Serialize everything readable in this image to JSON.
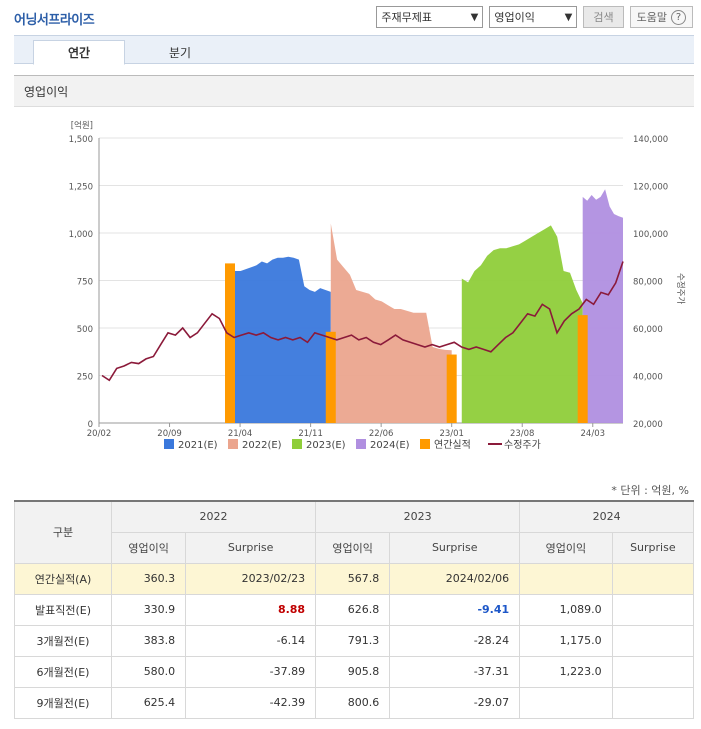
{
  "header": {
    "title": "어닝서프라이즈",
    "select1": "주재무제표",
    "select2": "영업이익",
    "search_label": "검색",
    "help_label": "도움말"
  },
  "tabs": [
    {
      "label": "연간"
    },
    {
      "label": "분기"
    }
  ],
  "section_title": "영업이익",
  "chart_data": {
    "type": "area",
    "left_axis_label": "[억원]",
    "right_axis_label": "수정주가",
    "left_ticks": [
      "0",
      "250",
      "500",
      "750",
      "1,000",
      "1,250",
      "1,500"
    ],
    "right_ticks": [
      "20,000",
      "40,000",
      "60,000",
      "80,000",
      "100,000",
      "120,000",
      "140,000"
    ],
    "x_ticks": [
      "20/02",
      "20/09",
      "21/04",
      "21/11",
      "22/06",
      "23/01",
      "23/08",
      "24/03"
    ],
    "ylim": [
      0,
      1500
    ],
    "y2lim": [
      20000,
      140000
    ],
    "colors": {
      "e2021": "#3a78dc",
      "e2022": "#eba58e",
      "e2023": "#8fce3a",
      "e2024": "#b08fe0",
      "actual": "#ff9a00",
      "price": "#8b1a3a"
    },
    "series": [
      {
        "name": "2021(E)",
        "x_start": "21/03",
        "x_end": "22/01",
        "values": [
          830,
          800,
          800,
          810,
          820,
          830,
          850,
          840,
          860,
          870,
          870,
          875,
          870,
          860,
          720,
          700,
          690,
          710,
          700,
          690
        ]
      },
      {
        "name": "2022(E)",
        "x_start": "22/01",
        "x_end": "23/01",
        "values": [
          1050,
          860,
          820,
          780,
          700,
          690,
          680,
          650,
          640,
          620,
          600,
          600,
          590,
          580,
          580,
          580,
          400,
          390,
          385,
          383
        ]
      },
      {
        "name": "2023(E)",
        "x_start": "23/02",
        "x_end": "24/02",
        "values": [
          760,
          740,
          800,
          830,
          880,
          910,
          920,
          920,
          930,
          940,
          960,
          980,
          1000,
          1020,
          1040,
          980,
          800,
          791,
          700,
          630
        ]
      },
      {
        "name": "2024(E)",
        "x_start": "24/02",
        "x_end": "24/06",
        "values": [
          1190,
          1170,
          1200,
          1175,
          1190,
          1230,
          1140,
          1100,
          1089,
          1080
        ]
      }
    ],
    "actual_bars": [
      {
        "name": "연간실적",
        "x": "21/03",
        "value": 840
      },
      {
        "name": "연간실적",
        "x": "22/01",
        "value": 480
      },
      {
        "name": "연간실적",
        "x": "23/01",
        "value": 360.3
      },
      {
        "name": "연간실적",
        "x": "24/02",
        "value": 567.8
      }
    ],
    "price": {
      "name": "수정주가",
      "values": [
        40000,
        38000,
        43000,
        44000,
        45500,
        45000,
        47000,
        48000,
        53000,
        58000,
        57000,
        60000,
        56000,
        58000,
        62000,
        66000,
        64000,
        58000,
        56000,
        57000,
        58000,
        57000,
        58000,
        56000,
        55000,
        56000,
        55000,
        56000,
        54000,
        58000,
        57000,
        56000,
        55000,
        56000,
        57000,
        55000,
        56000,
        54000,
        53000,
        55000,
        57000,
        55000,
        54000,
        53000,
        52000,
        53000,
        52000,
        53000,
        54000,
        52000,
        51000,
        52000,
        51000,
        50000,
        53000,
        56000,
        58000,
        62000,
        66000,
        65000,
        70000,
        68000,
        58000,
        63000,
        66000,
        68000,
        72000,
        70000,
        75000,
        74000,
        79000,
        88000
      ]
    },
    "legend": [
      "2021(E)",
      "2022(E)",
      "2023(E)",
      "2024(E)",
      "연간실적",
      "수정주가"
    ],
    "legend_position": "bottom"
  },
  "unit_note": "* 단위 : 억원, %",
  "table": {
    "corner": "구분",
    "years": [
      "2022",
      "2023",
      "2024"
    ],
    "sub_headers": [
      "영업이익",
      "Surprise"
    ],
    "rows": [
      {
        "label": "연간실적(A)",
        "cells": [
          "360.3",
          "2023/02/23",
          "567.8",
          "2024/02/06",
          "",
          ""
        ]
      },
      {
        "label": "발표직전(E)",
        "cells": [
          "330.9",
          "8.88",
          "626.8",
          "-9.41",
          "1,089.0",
          ""
        ]
      },
      {
        "label": "3개월전(E)",
        "cells": [
          "383.8",
          "-6.14",
          "791.3",
          "-28.24",
          "1,175.0",
          ""
        ]
      },
      {
        "label": "6개월전(E)",
        "cells": [
          "580.0",
          "-37.89",
          "905.8",
          "-37.31",
          "1,223.0",
          ""
        ]
      },
      {
        "label": "9개월전(E)",
        "cells": [
          "625.4",
          "-42.39",
          "800.6",
          "-29.07",
          "",
          ""
        ]
      }
    ]
  }
}
